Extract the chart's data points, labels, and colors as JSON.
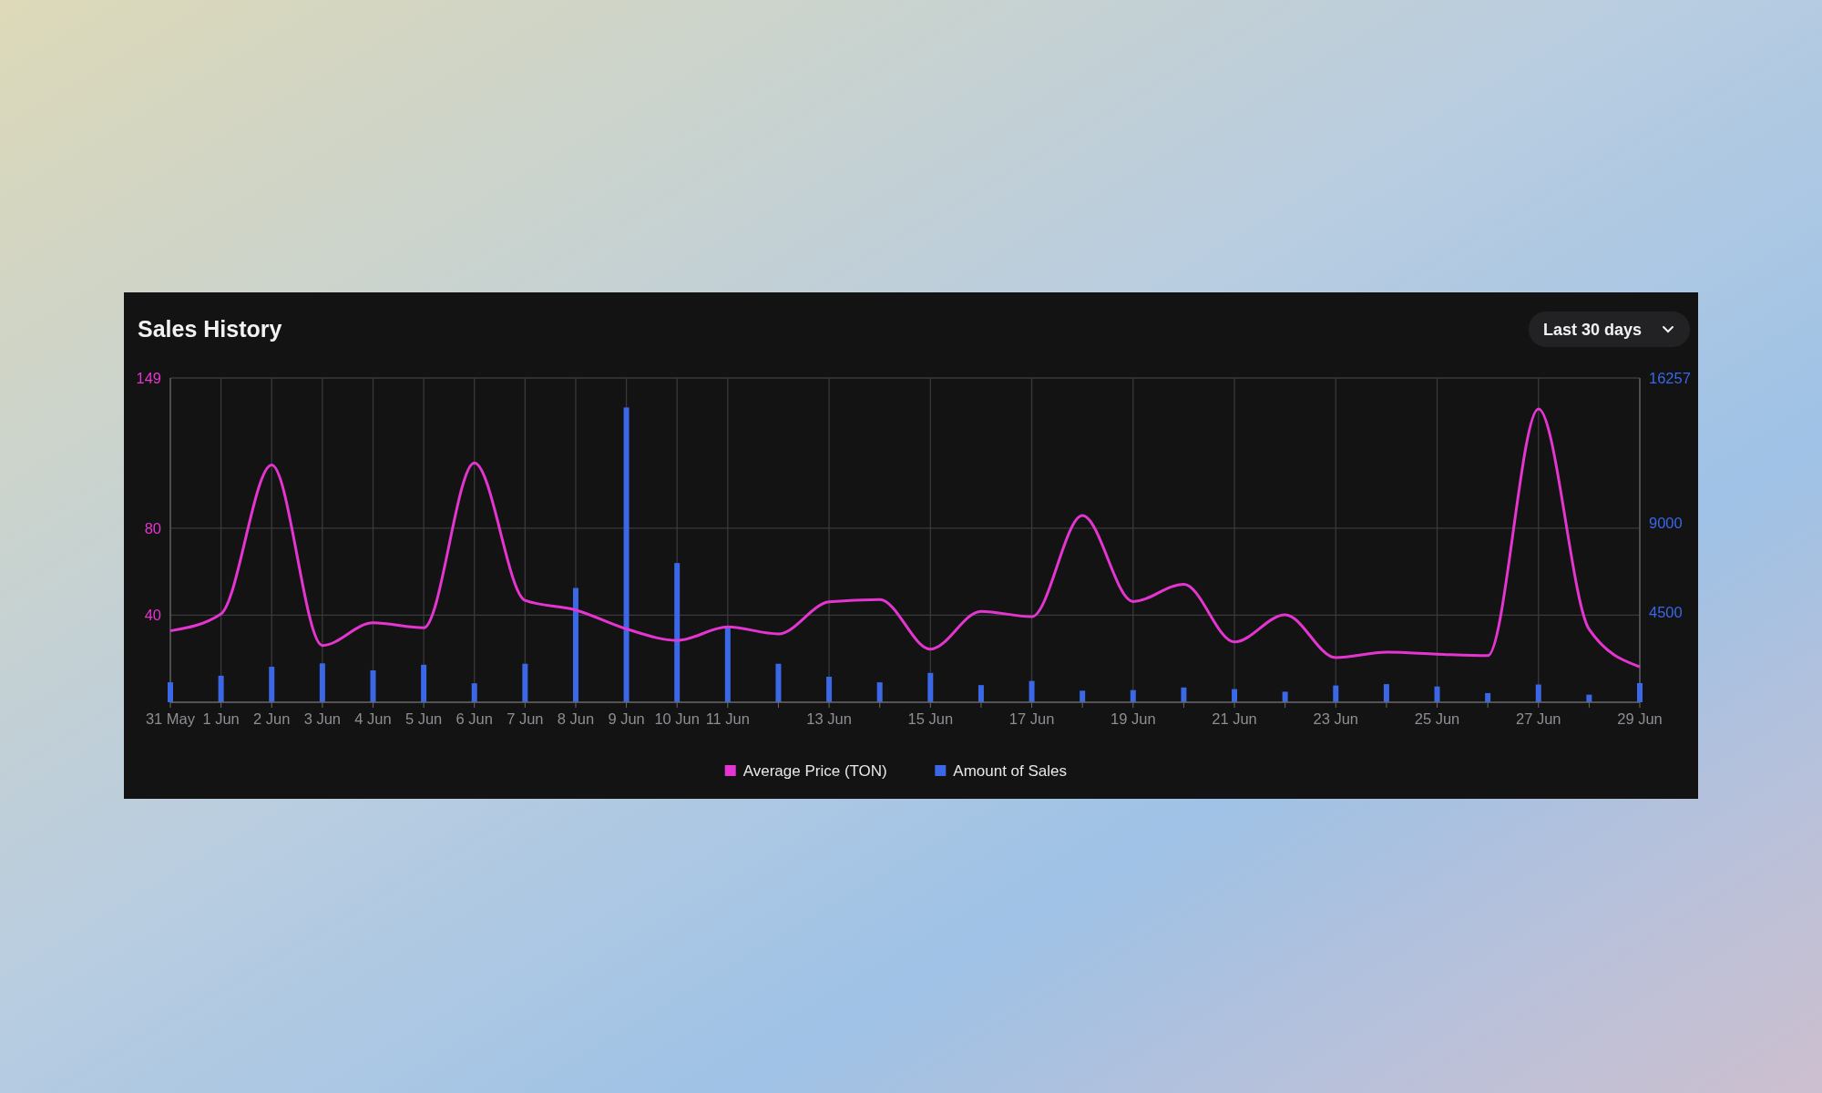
{
  "chart_data": {
    "type": "bar",
    "title": "Sales History",
    "annotations": [
      "Last 30 days"
    ],
    "categories": [
      "31 May",
      "1 Jun",
      "2 Jun",
      "3 Jun",
      "4 Jun",
      "5 Jun",
      "6 Jun",
      "7 Jun",
      "8 Jun",
      "9 Jun",
      "10 Jun",
      "11 Jun",
      null,
      "13 Jun",
      null,
      "15 Jun",
      null,
      "17 Jun",
      null,
      "19 Jun",
      null,
      "21 Jun",
      null,
      "23 Jun",
      null,
      "25 Jun",
      null,
      "27 Jun",
      null,
      "29 Jun"
    ],
    "series": [
      {
        "name": "Average Price (TON)",
        "type": "line",
        "color": "#e535d0",
        "values": [
          32.8,
          40.6,
          109,
          26.1,
          36.5,
          34.2,
          110,
          46.8,
          42.4,
          33.7,
          28.4,
          34.6,
          31.4,
          46.1,
          47.2,
          24.4,
          41.8,
          39.3,
          85.8,
          46.3,
          54.2,
          27.7,
          40.2,
          20.5,
          23.0,
          22.1,
          21.4,
          134.8,
          33.5,
          16.3
        ]
      },
      {
        "name": "Amount of Sales",
        "axis": "y2",
        "color": "#3a68e6",
        "values": [
          1000,
          1330,
          1780,
          1950,
          1600,
          1880,
          950,
          1930,
          5730,
          14780,
          6980,
          3750,
          1930,
          1280,
          1000,
          1470,
          860,
          1070,
          580,
          610,
          740,
          660,
          530,
          840,
          910,
          790,
          460,
          890,
          380,
          960
        ]
      }
    ],
    "ylim": [
      0,
      149
    ],
    "yticks": [
      40,
      80,
      149
    ],
    "y2lim": [
      0,
      16257
    ],
    "y2ticks": [
      4500,
      9000,
      16257
    ],
    "grid": true,
    "legend": "bottom",
    "marker": "none"
  }
}
